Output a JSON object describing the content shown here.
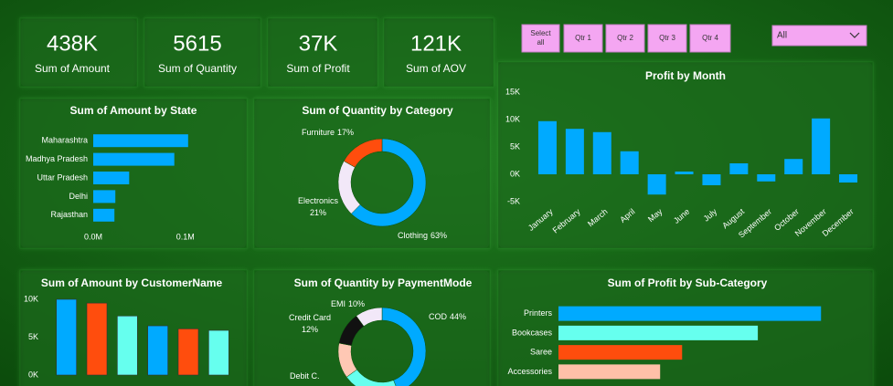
{
  "kpis": [
    {
      "value": "438K",
      "label": "Sum of Amount"
    },
    {
      "value": "5615",
      "label": "Sum of Quantity"
    },
    {
      "value": "37K",
      "label": "Sum of Profit"
    },
    {
      "value": "121K",
      "label": "Sum of AOV"
    }
  ],
  "slicer": {
    "buttons": [
      "Select all",
      "Qtr 1",
      "Qtr 2",
      "Qtr 3",
      "Qtr 4"
    ],
    "dropdown": "All"
  },
  "chart_data": [
    {
      "type": "bar",
      "horizontal": true,
      "title": "Sum of Amount by State",
      "categories": [
        "Maharashtra",
        "Madhya Pradesh",
        "Uttar Pradesh",
        "Delhi",
        "Rajasthan"
      ],
      "values": [
        103000,
        88000,
        39000,
        24000,
        23000
      ],
      "color": "#00aaff",
      "xlim": [
        0,
        125000
      ],
      "xticks": [
        {
          "value": 0,
          "label": "0.0M"
        },
        {
          "value": 100000,
          "label": "0.1M"
        }
      ]
    },
    {
      "type": "pie",
      "donut": true,
      "title": "Sum of Quantity by Category",
      "categories": [
        "Clothing",
        "Electronics",
        "Furniture"
      ],
      "values": [
        63,
        21,
        17
      ],
      "value_labels": [
        "63%",
        "21%",
        "17%"
      ],
      "colors": [
        "#00aaff",
        "#f2e8f8",
        "#ff4d0d"
      ]
    },
    {
      "type": "bar",
      "title": "Profit by Month",
      "categories": [
        "January",
        "February",
        "March",
        "April",
        "May",
        "June",
        "July",
        "August",
        "September",
        "October",
        "November",
        "December"
      ],
      "values": [
        9700,
        8300,
        7700,
        4200,
        -3700,
        500,
        -2000,
        2000,
        -1300,
        2800,
        10200,
        -1500
      ],
      "color": "#00aaff",
      "ylim": [
        -5000,
        15000
      ],
      "yticks": [
        {
          "value": -5000,
          "label": "-5K"
        },
        {
          "value": 0,
          "label": "0K"
        },
        {
          "value": 5000,
          "label": "5K"
        },
        {
          "value": 10000,
          "label": "10K"
        },
        {
          "value": 15000,
          "label": "15K"
        }
      ]
    },
    {
      "type": "bar",
      "title": "Sum of Amount by CustomerName",
      "categories": [
        null,
        null,
        null,
        null,
        null,
        null
      ],
      "values": [
        10000,
        9500,
        7800,
        6500,
        6100,
        5900
      ],
      "colors": [
        "#00aaff",
        "#ff4d0d",
        "#66ffee",
        "#00aaff",
        "#ff4d0d",
        "#66ffee"
      ],
      "ylim": [
        0,
        10000
      ],
      "yticks": [
        {
          "value": 0,
          "label": "0K"
        },
        {
          "value": 5000,
          "label": "5K"
        },
        {
          "value": 10000,
          "label": "10K"
        }
      ]
    },
    {
      "type": "pie",
      "donut": true,
      "title": "Sum of Quantity by PaymentMode",
      "categories": [
        "COD",
        null,
        "Debit C.",
        "Credit Card",
        "EMI"
      ],
      "values": [
        44,
        21,
        13,
        12,
        10
      ],
      "value_labels": [
        "44%",
        null,
        null,
        "12%",
        "10%"
      ],
      "colors": [
        "#00aaff",
        "#66ffee",
        "#ffc8b4",
        "#111111",
        "#f2e8f8"
      ]
    },
    {
      "type": "bar",
      "horizontal": true,
      "title": "Sum of Profit by Sub-Category",
      "categories": [
        "Printers",
        "Bookcases",
        "Saree",
        "Accessories"
      ],
      "values": [
        8600,
        6530,
        4050,
        3330
      ],
      "colors": [
        "#00aaff",
        "#66ffee",
        "#ff4d0d",
        "#ffc0a8"
      ],
      "xlim": [
        0,
        10000
      ]
    }
  ]
}
